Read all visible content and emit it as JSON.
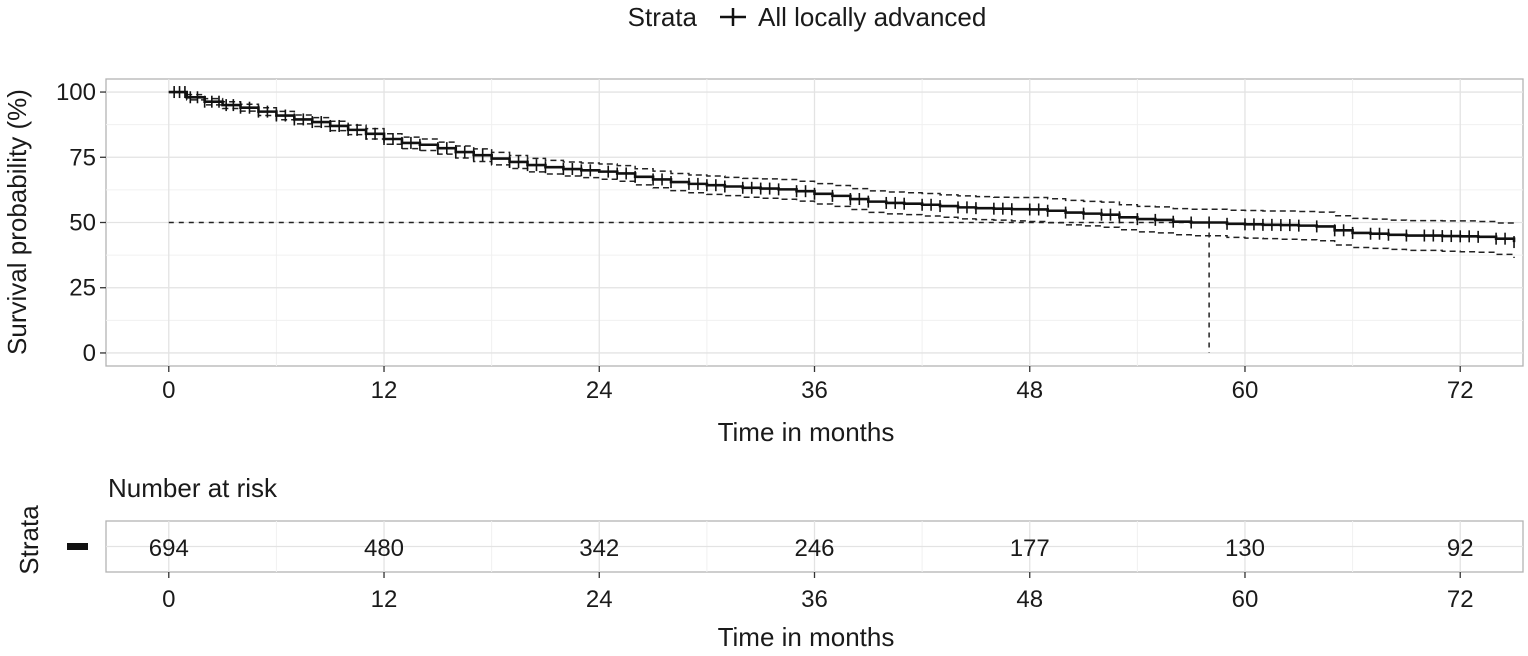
{
  "legend": {
    "title": "Strata",
    "entries": [
      "All locally advanced"
    ]
  },
  "chart_data": {
    "type": "line",
    "title": "",
    "xlabel": "Time in months",
    "ylabel": "Survival probability (%)",
    "xlim": [
      -3.5,
      75.5
    ],
    "ylim": [
      -5,
      105
    ],
    "x_ticks": [
      0,
      12,
      24,
      36,
      48,
      60,
      72
    ],
    "x_tick_labels": [
      "0",
      "12",
      "24",
      "36",
      "48",
      "60",
      "72"
    ],
    "y_ticks": [
      0,
      25,
      50,
      75,
      100
    ],
    "y_tick_labels": [
      "0",
      "25",
      "50",
      "75",
      "100"
    ],
    "grid": true,
    "legend_position": "top",
    "series": [
      {
        "name": "All locally advanced",
        "x": [
          0,
          1,
          2,
          3,
          4,
          5,
          6,
          7,
          8,
          9,
          10,
          11,
          12,
          13,
          14,
          15,
          16,
          17,
          18,
          19,
          20,
          21,
          22,
          23,
          24,
          25,
          26,
          27,
          28,
          29,
          30,
          31,
          32,
          33,
          34,
          35,
          36,
          37,
          38,
          39,
          40,
          41,
          42,
          43,
          44,
          45,
          46,
          47,
          48,
          49,
          50,
          51,
          52,
          53,
          54,
          55,
          56,
          57,
          58,
          59,
          60,
          61,
          62,
          63,
          64,
          65,
          66,
          67,
          68,
          69,
          70,
          71,
          72,
          73,
          74,
          75
        ],
        "y": [
          100,
          98,
          96.3,
          95,
          94,
          92.5,
          91,
          89.5,
          88.5,
          87,
          85.5,
          84,
          82,
          80.5,
          79.8,
          78.5,
          77,
          75.8,
          74.5,
          73.2,
          72,
          71.2,
          70.5,
          70,
          69.5,
          68.8,
          67.5,
          66.5,
          65.5,
          64.8,
          64.3,
          63.8,
          63.3,
          63,
          62.7,
          62,
          61,
          60.2,
          59,
          58,
          57.5,
          57.2,
          56.8,
          56.3,
          55.8,
          55.5,
          55.3,
          55.1,
          55,
          54.5,
          53.8,
          53.4,
          53,
          52,
          51.3,
          51,
          50.3,
          50,
          50,
          49.5,
          49.3,
          49.1,
          49,
          48.8,
          48.5,
          47,
          46,
          45.7,
          45.3,
          45,
          45,
          44.8,
          44.7,
          44.5,
          43.8,
          42.5
        ]
      }
    ],
    "ci_upper": [
      100,
      99,
      97.5,
      96.3,
      95.3,
      94,
      92.6,
      91.2,
      90.2,
      88.8,
      87.3,
      86,
      84,
      82.7,
      82,
      80.8,
      79.3,
      78.2,
      76.9,
      75.7,
      74.6,
      73.8,
      73.2,
      72.8,
      72.4,
      71.8,
      70.6,
      69.7,
      68.8,
      68.2,
      67.8,
      67.3,
      66.9,
      66.7,
      66.5,
      65.8,
      64.9,
      64.2,
      63,
      62.1,
      61.7,
      61.4,
      61.1,
      60.6,
      60.2,
      59.9,
      59.7,
      59.6,
      59.6,
      59.1,
      58.5,
      58.1,
      57.8,
      56.8,
      56.2,
      56,
      55.3,
      55.1,
      55.1,
      54.7,
      54.6,
      54.4,
      54.4,
      54.2,
      54,
      52.6,
      51.6,
      51.3,
      50.9,
      50.7,
      50.7,
      50.6,
      50.6,
      50.4,
      49.8,
      48.6
    ],
    "ci_lower": [
      100,
      97,
      95.1,
      93.7,
      92.7,
      91,
      89.4,
      87.8,
      86.8,
      85.2,
      83.7,
      82,
      80,
      78.3,
      77.6,
      76.2,
      74.7,
      73.4,
      72.1,
      70.7,
      69.4,
      68.6,
      67.8,
      67.2,
      66.6,
      65.8,
      64.4,
      63.3,
      62.2,
      61.4,
      60.8,
      60.3,
      59.7,
      59.3,
      58.9,
      58.2,
      57.1,
      56.2,
      55,
      53.9,
      53.3,
      53,
      52.5,
      52,
      51.4,
      51.1,
      50.9,
      50.6,
      50.4,
      49.9,
      49.1,
      48.7,
      48.2,
      47.2,
      46.4,
      46,
      45.3,
      44.9,
      44.9,
      44.3,
      44,
      43.8,
      43.6,
      43.4,
      43,
      41.4,
      40.4,
      40.1,
      39.7,
      39.3,
      39.3,
      39,
      38.8,
      38.6,
      37.8,
      36.4
    ],
    "median_reference": {
      "y": 50,
      "x": 58
    },
    "censor_times": [
      0.3,
      0.6,
      0.9,
      1.2,
      1.6,
      2,
      2.4,
      2.8,
      3.2,
      3.6,
      4,
      4.5,
      5,
      5.5,
      6,
      6.5,
      7,
      7.5,
      8,
      8.5,
      9,
      9.5,
      10,
      10.5,
      11,
      11.5,
      12,
      12.5,
      13,
      13.5,
      14,
      15,
      15.5,
      16,
      16.5,
      17,
      17.5,
      18,
      19,
      19.5,
      20,
      20.5,
      21,
      22,
      22.5,
      23,
      23.5,
      24.5,
      25,
      25.5,
      26,
      27,
      27.5,
      28,
      29,
      29.5,
      30,
      30.5,
      31,
      32,
      32.5,
      33,
      33.5,
      34,
      35,
      35.5,
      36,
      37,
      38,
      38.5,
      39,
      40,
      40.5,
      41,
      42,
      42.5,
      43,
      44,
      44.5,
      45,
      46,
      46.5,
      47,
      48,
      48.5,
      49,
      50,
      51,
      52,
      52.5,
      53,
      54,
      55,
      56,
      57,
      58,
      59,
      60,
      60.5,
      61,
      61.5,
      62,
      62.5,
      63,
      64,
      65,
      65.5,
      66,
      67,
      67.5,
      68,
      69,
      70,
      70.5,
      71,
      71.5,
      72,
      72.5,
      73,
      74,
      74.5,
      75
    ]
  },
  "risk_table": {
    "title": "Number at risk",
    "ylabel": "Strata",
    "xlabel": "Time in months",
    "times": [
      0,
      12,
      24,
      36,
      48,
      60,
      72
    ],
    "time_labels": [
      "0",
      "12",
      "24",
      "36",
      "48",
      "60",
      "72"
    ],
    "counts": [
      "694",
      "480",
      "342",
      "246",
      "177",
      "130",
      "92"
    ]
  }
}
